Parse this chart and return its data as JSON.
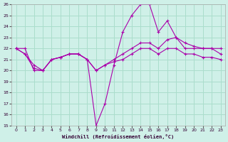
{
  "xlabel": "Windchill (Refroidissement éolien,°C)",
  "background_color": "#cff0e8",
  "grid_color": "#aaddcc",
  "line_color": "#aa00aa",
  "xlim_min": -0.5,
  "xlim_max": 23.5,
  "ylim_min": 15,
  "ylim_max": 26,
  "yticks": [
    15,
    16,
    17,
    18,
    19,
    20,
    21,
    22,
    23,
    24,
    25,
    26
  ],
  "xticks": [
    0,
    1,
    2,
    3,
    4,
    5,
    6,
    7,
    8,
    9,
    10,
    11,
    12,
    13,
    14,
    15,
    16,
    17,
    18,
    19,
    20,
    21,
    22,
    23
  ],
  "hours": [
    0,
    1,
    2,
    3,
    4,
    5,
    6,
    7,
    8,
    9,
    10,
    11,
    12,
    13,
    14,
    15,
    16,
    17,
    18,
    19,
    20,
    21,
    22,
    23
  ],
  "line1": [
    22.0,
    22.0,
    20.0,
    20.0,
    21.0,
    21.2,
    21.5,
    21.5,
    21.0,
    15.0,
    17.0,
    20.5,
    23.5,
    25.0,
    26.0,
    26.0,
    23.5,
    24.5,
    23.0,
    22.0,
    22.0,
    22.0,
    22.0,
    21.5
  ],
  "line2": [
    22.0,
    21.5,
    20.5,
    20.0,
    21.0,
    21.2,
    21.5,
    21.5,
    21.0,
    20.0,
    20.5,
    21.0,
    21.5,
    22.0,
    22.5,
    22.5,
    22.0,
    22.8,
    23.0,
    22.5,
    22.2,
    22.0,
    22.0,
    22.0
  ],
  "line3": [
    22.0,
    21.5,
    20.2,
    20.0,
    21.0,
    21.2,
    21.5,
    21.5,
    21.0,
    20.0,
    20.5,
    20.8,
    21.0,
    21.5,
    22.0,
    22.0,
    21.5,
    22.0,
    22.0,
    21.5,
    21.5,
    21.2,
    21.2,
    21.0
  ]
}
